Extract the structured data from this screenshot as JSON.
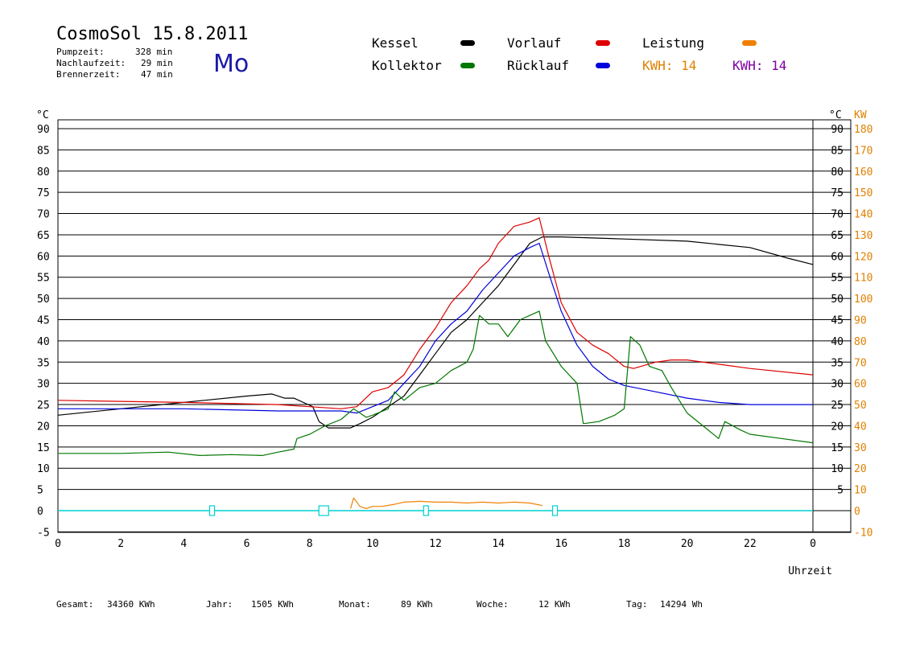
{
  "header": {
    "title": "CosmoSol 15.8.2011",
    "day": "Mo",
    "info": [
      {
        "label": "Pumpzeit:",
        "value": "328 min"
      },
      {
        "label": "Nachlaufzeit:",
        "value": "29 min"
      },
      {
        "label": "Brennerzeit:",
        "value": "47 min"
      }
    ]
  },
  "legend": {
    "items": [
      {
        "label": "Kessel",
        "color": "#000000"
      },
      {
        "label": "Vorlauf",
        "color": "#dd0000"
      },
      {
        "label": "Leistung",
        "color": "#f08000"
      },
      {
        "label": "Kollektor",
        "color": "#007700"
      },
      {
        "label": "Rücklauf",
        "color": "#0000dd"
      }
    ],
    "kwh1": "KWH: 14",
    "kwh1_color": "#e08000",
    "kwh2": "KWH: 14",
    "kwh2_color": "#8000a0"
  },
  "footer": [
    {
      "label": "Gesamt:",
      "value": "34360 KWh"
    },
    {
      "label": "Jahr:",
      "value": "1505 KWh"
    },
    {
      "label": "Monat:",
      "value": "89 KWh"
    },
    {
      "label": "Woche:",
      "value": "12 KWh"
    },
    {
      "label": "Tag:",
      "value": "14294 Wh"
    }
  ],
  "chart_data": {
    "type": "line",
    "xlabel": "Uhrzeit",
    "ylabel_left": "°C",
    "ylabel_right": "°C",
    "ylabel_right2": "KW",
    "xlim": [
      0,
      24
    ],
    "ylim": [
      -5,
      95
    ],
    "grid": true,
    "x_ticks": [
      {
        "v": 0,
        "t": "0"
      },
      {
        "v": 2,
        "t": "2"
      },
      {
        "v": 4,
        "t": "4"
      },
      {
        "v": 6,
        "t": "6"
      },
      {
        "v": 8,
        "t": "8"
      },
      {
        "v": 10,
        "t": "10"
      },
      {
        "v": 12,
        "t": "12"
      },
      {
        "v": 14,
        "t": "14"
      },
      {
        "v": 16,
        "t": "16"
      },
      {
        "v": 18,
        "t": "18"
      },
      {
        "v": 20,
        "t": "20"
      },
      {
        "v": 22,
        "t": "22"
      },
      {
        "v": 24,
        "t": "0"
      }
    ],
    "y_ticks": [
      {
        "v": -5,
        "t": "-5"
      },
      {
        "v": 0,
        "t": "0"
      },
      {
        "v": 5,
        "t": "5"
      },
      {
        "v": 10,
        "t": "10"
      },
      {
        "v": 15,
        "t": "15"
      },
      {
        "v": 20,
        "t": "20"
      },
      {
        "v": 25,
        "t": "25"
      },
      {
        "v": 30,
        "t": "30"
      },
      {
        "v": 35,
        "t": "35"
      },
      {
        "v": 40,
        "t": "40"
      },
      {
        "v": 45,
        "t": "45"
      },
      {
        "v": 50,
        "t": "50"
      },
      {
        "v": 55,
        "t": "55"
      },
      {
        "v": 60,
        "t": "60"
      },
      {
        "v": 65,
        "t": "65"
      },
      {
        "v": 70,
        "t": "70"
      },
      {
        "v": 75,
        "t": "75"
      },
      {
        "v": 80,
        "t": "80"
      },
      {
        "v": 85,
        "t": "85"
      },
      {
        "v": 90,
        "t": "90"
      }
    ],
    "y_ticks_right_c": [
      {
        "v": 5,
        "t": "5"
      },
      {
        "v": 10,
        "t": "10"
      },
      {
        "v": 15,
        "t": "15"
      },
      {
        "v": 20,
        "t": "20"
      },
      {
        "v": 25,
        "t": "25"
      },
      {
        "v": 30,
        "t": "30"
      },
      {
        "v": 35,
        "t": "35"
      },
      {
        "v": 40,
        "t": "40"
      },
      {
        "v": 45,
        "t": "45"
      },
      {
        "v": 50,
        "t": "50"
      },
      {
        "v": 55,
        "t": "55"
      },
      {
        "v": 60,
        "t": "60"
      },
      {
        "v": 65,
        "t": "65"
      },
      {
        "v": 70,
        "t": "70"
      },
      {
        "v": 75,
        "t": "75"
      },
      {
        "v": 80,
        "t": "80"
      },
      {
        "v": 85,
        "t": "85"
      },
      {
        "v": 90,
        "t": "90"
      }
    ],
    "y_ticks_right_kw": [
      {
        "v": -5,
        "t": "-10"
      },
      {
        "v": 0,
        "t": "0"
      },
      {
        "v": 5,
        "t": "10"
      },
      {
        "v": 10,
        "t": "20"
      },
      {
        "v": 15,
        "t": "30"
      },
      {
        "v": 20,
        "t": "40"
      },
      {
        "v": 25,
        "t": "50"
      },
      {
        "v": 30,
        "t": "60"
      },
      {
        "v": 35,
        "t": "70"
      },
      {
        "v": 40,
        "t": "80"
      },
      {
        "v": 45,
        "t": "90"
      },
      {
        "v": 50,
        "t": "100"
      },
      {
        "v": 55,
        "t": "110"
      },
      {
        "v": 60,
        "t": "120"
      },
      {
        "v": 65,
        "t": "130"
      },
      {
        "v": 70,
        "t": "140"
      },
      {
        "v": 75,
        "t": "150"
      },
      {
        "v": 80,
        "t": "160"
      },
      {
        "v": 85,
        "t": "170"
      },
      {
        "v": 90,
        "t": "180"
      }
    ],
    "series": [
      {
        "name": "Kessel",
        "color": "#000000",
        "points": [
          [
            0,
            22.5
          ],
          [
            2,
            24
          ],
          [
            4,
            25.5
          ],
          [
            6,
            27
          ],
          [
            6.8,
            27.5
          ],
          [
            7.2,
            26.5
          ],
          [
            7.5,
            26.5
          ],
          [
            8.1,
            24.5
          ],
          [
            8.3,
            21
          ],
          [
            8.6,
            19.5
          ],
          [
            9.3,
            19.5
          ],
          [
            9.6,
            20.5
          ],
          [
            10,
            22
          ],
          [
            10.5,
            24.5
          ],
          [
            11,
            27
          ],
          [
            11.5,
            32
          ],
          [
            12,
            37
          ],
          [
            12.5,
            42
          ],
          [
            13,
            45
          ],
          [
            13.5,
            49
          ],
          [
            14,
            53
          ],
          [
            14.5,
            58
          ],
          [
            15,
            63
          ],
          [
            15.4,
            64.5
          ],
          [
            16,
            64.5
          ],
          [
            18,
            64
          ],
          [
            20,
            63.5
          ],
          [
            22,
            62
          ],
          [
            23.2,
            59.5
          ],
          [
            24,
            58
          ]
        ]
      },
      {
        "name": "Vorlauf",
        "color": "#dd0000",
        "points": [
          [
            0,
            26
          ],
          [
            4,
            25.5
          ],
          [
            7,
            25
          ],
          [
            9,
            24
          ],
          [
            9.5,
            24.5
          ],
          [
            10,
            28
          ],
          [
            10.5,
            29
          ],
          [
            11,
            32
          ],
          [
            11.5,
            38
          ],
          [
            12,
            43
          ],
          [
            12.5,
            49
          ],
          [
            13,
            53
          ],
          [
            13.4,
            57
          ],
          [
            13.7,
            59
          ],
          [
            14,
            63
          ],
          [
            14.5,
            67
          ],
          [
            15,
            68
          ],
          [
            15.3,
            69
          ],
          [
            15.6,
            60
          ],
          [
            16,
            49
          ],
          [
            16.5,
            42
          ],
          [
            17,
            39
          ],
          [
            17.5,
            37
          ],
          [
            18,
            34
          ],
          [
            18.3,
            33.5
          ],
          [
            19,
            35
          ],
          [
            19.5,
            35.5
          ],
          [
            20,
            35.5
          ],
          [
            21,
            34.5
          ],
          [
            22,
            33.5
          ],
          [
            24,
            32
          ]
        ]
      },
      {
        "name": "Rücklauf",
        "color": "#0000dd",
        "points": [
          [
            0,
            24
          ],
          [
            4,
            24
          ],
          [
            7,
            23.5
          ],
          [
            9,
            23.5
          ],
          [
            9.5,
            23
          ],
          [
            10,
            24.5
          ],
          [
            10.5,
            26
          ],
          [
            11,
            30
          ],
          [
            11.5,
            34
          ],
          [
            12,
            40
          ],
          [
            12.5,
            44
          ],
          [
            13,
            47
          ],
          [
            13.5,
            52
          ],
          [
            14,
            56
          ],
          [
            14.5,
            60
          ],
          [
            15,
            62
          ],
          [
            15.3,
            63
          ],
          [
            15.6,
            56
          ],
          [
            16,
            47
          ],
          [
            16.5,
            39
          ],
          [
            17,
            34
          ],
          [
            17.5,
            31
          ],
          [
            18,
            29.5
          ],
          [
            19,
            28
          ],
          [
            20,
            26.5
          ],
          [
            21,
            25.5
          ],
          [
            22,
            25
          ],
          [
            24,
            25
          ]
        ]
      },
      {
        "name": "Kollektor",
        "color": "#007700",
        "points": [
          [
            0,
            13.5
          ],
          [
            2,
            13.5
          ],
          [
            3.5,
            13.8
          ],
          [
            4.5,
            13
          ],
          [
            5.5,
            13.2
          ],
          [
            6.5,
            13
          ],
          [
            7,
            13.8
          ],
          [
            7.5,
            14.5
          ],
          [
            7.6,
            17
          ],
          [
            8,
            18
          ],
          [
            8.5,
            20
          ],
          [
            9,
            21.5
          ],
          [
            9.4,
            24
          ],
          [
            9.8,
            22
          ],
          [
            10,
            22.5
          ],
          [
            10.5,
            24
          ],
          [
            10.7,
            28
          ],
          [
            11,
            26
          ],
          [
            11.5,
            29
          ],
          [
            12,
            30
          ],
          [
            12.5,
            33
          ],
          [
            13,
            35
          ],
          [
            13.2,
            38
          ],
          [
            13.4,
            46
          ],
          [
            13.7,
            44
          ],
          [
            14,
            44
          ],
          [
            14.3,
            41
          ],
          [
            14.7,
            45
          ],
          [
            15,
            46
          ],
          [
            15.3,
            47
          ],
          [
            15.5,
            40
          ],
          [
            16,
            34
          ],
          [
            16.5,
            30
          ],
          [
            16.7,
            20.5
          ],
          [
            17.2,
            21
          ],
          [
            17.7,
            22.5
          ],
          [
            18,
            24
          ],
          [
            18.2,
            41
          ],
          [
            18.5,
            39
          ],
          [
            18.8,
            34
          ],
          [
            19.2,
            33
          ],
          [
            19.5,
            29
          ],
          [
            20,
            23
          ],
          [
            20.5,
            20
          ],
          [
            21,
            17
          ],
          [
            21.2,
            21
          ],
          [
            21.7,
            19
          ],
          [
            22,
            18
          ],
          [
            23,
            17
          ],
          [
            24,
            16
          ]
        ]
      },
      {
        "name": "Leistung",
        "color": "#f08000",
        "points": [
          [
            9.3,
            0.5
          ],
          [
            9.4,
            3
          ],
          [
            9.6,
            1
          ],
          [
            9.8,
            0.5
          ],
          [
            10,
            1
          ],
          [
            10.3,
            1
          ],
          [
            10.7,
            1.5
          ],
          [
            11,
            2
          ],
          [
            11.5,
            2.2
          ],
          [
            12,
            2
          ],
          [
            12.5,
            2
          ],
          [
            13,
            1.8
          ],
          [
            13.5,
            2
          ],
          [
            14,
            1.8
          ],
          [
            14.5,
            2
          ],
          [
            15,
            1.8
          ],
          [
            15.4,
            1.2
          ]
        ]
      }
    ],
    "pump_baseline": {
      "value": 0,
      "color": "#00d0d0",
      "markers": [
        4.9,
        8.45,
        11.7,
        15.8
      ]
    }
  }
}
